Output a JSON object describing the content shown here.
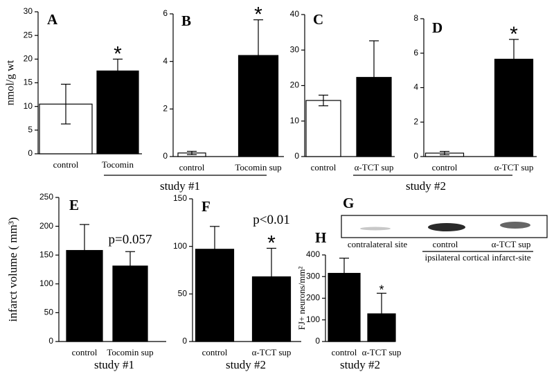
{
  "chart_data": [
    {
      "type": "bar",
      "panel": "A",
      "ylabel": "nmol/g wt",
      "categories": [
        "control",
        "Tocomin"
      ],
      "values": [
        10.5,
        17.5
      ],
      "errors": [
        4.2,
        2.5
      ],
      "colors": [
        "#ffffff",
        "#000000"
      ],
      "ylim": [
        0,
        30
      ],
      "yticks": [
        0,
        5,
        10,
        15,
        20,
        25,
        30
      ],
      "annotations": [
        {
          "text": "*",
          "at": 1
        }
      ]
    },
    {
      "type": "bar",
      "panel": "B",
      "categories": [
        "control",
        "Tocomin sup"
      ],
      "values": [
        0.15,
        4.25
      ],
      "errors": [
        0.07,
        1.5
      ],
      "colors": [
        "#ffffff",
        "#000000"
      ],
      "ylim": [
        0,
        6
      ],
      "yticks": [
        0,
        2,
        4,
        6
      ],
      "annotations": [
        {
          "text": "*",
          "at": 1
        }
      ]
    },
    {
      "type": "bar",
      "panel": "C",
      "categories": [
        "control",
        "α-TCT sup"
      ],
      "values": [
        15.8,
        22.3
      ],
      "errors": [
        1.5,
        10.3
      ],
      "colors": [
        "#ffffff",
        "#000000"
      ],
      "ylim": [
        0,
        40
      ],
      "yticks": [
        0,
        10,
        20,
        30,
        40
      ]
    },
    {
      "type": "bar",
      "panel": "D",
      "categories": [
        "control",
        "α-TCT sup"
      ],
      "values": [
        0.2,
        5.65
      ],
      "errors": [
        0.1,
        1.15
      ],
      "colors": [
        "#ffffff",
        "#000000"
      ],
      "ylim": [
        0,
        8
      ],
      "yticks": [
        0,
        2,
        4,
        6,
        8
      ],
      "annotations": [
        {
          "text": "*",
          "at": 1
        }
      ]
    },
    {
      "type": "bar",
      "panel": "E",
      "ylabel": "infarct volume ( mm³)",
      "xlabel": "study #1",
      "categories": [
        "control",
        "Tocomin sup"
      ],
      "values": [
        158,
        131
      ],
      "errors": [
        45,
        25
      ],
      "colors": [
        "#000000",
        "#000000"
      ],
      "ylim": [
        0,
        250
      ],
      "yticks": [
        0,
        50,
        100,
        150,
        200,
        250
      ],
      "annotations": [
        {
          "text": "p=0.057",
          "at": 1
        }
      ]
    },
    {
      "type": "bar",
      "panel": "F",
      "xlabel": "study #2",
      "categories": [
        "control",
        "α-TCT sup"
      ],
      "values": [
        97,
        68
      ],
      "errors": [
        24,
        30
      ],
      "colors": [
        "#000000",
        "#000000"
      ],
      "ylim": [
        0,
        150
      ],
      "yticks": [
        0,
        50,
        100,
        150
      ],
      "annotations": [
        {
          "text": "*",
          "at": 1
        },
        {
          "text": "p<0.01",
          "at": 1
        }
      ]
    },
    {
      "type": "blot",
      "panel": "G",
      "lanes": [
        "contralateral site",
        "control",
        "α-TCT sup"
      ],
      "group_label": "ipsilateral cortical infarct-site"
    },
    {
      "type": "bar",
      "panel": "H",
      "ylabel": "FJ+ neurons/mm²",
      "xlabel": "study #2",
      "categories": [
        "control",
        "α-TCT sup"
      ],
      "values": [
        315,
        128
      ],
      "errors": [
        70,
        95
      ],
      "colors": [
        "#000000",
        "#000000"
      ],
      "ylim": [
        0,
        400
      ],
      "yticks": [
        0,
        100,
        200,
        300,
        400
      ],
      "annotations": [
        {
          "text": "*",
          "at": 1
        }
      ]
    }
  ],
  "group_labels": [
    "study #1",
    "study #2"
  ]
}
